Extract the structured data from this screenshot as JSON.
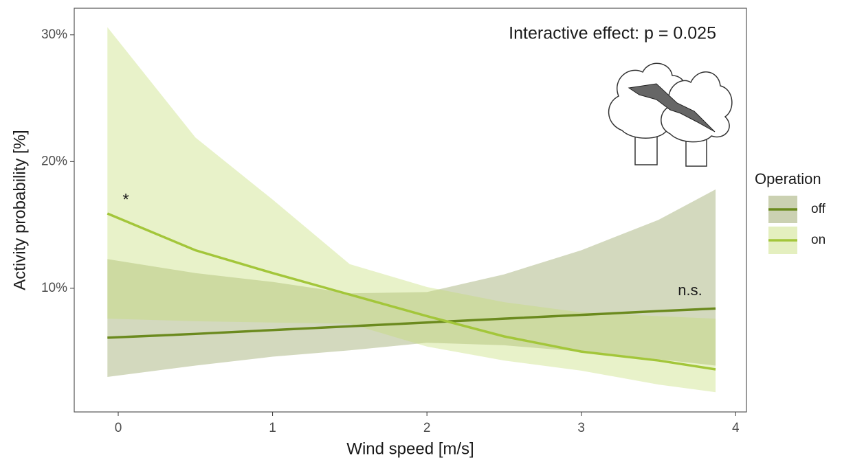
{
  "chart_data": {
    "type": "line",
    "annotation": "Interactive effect: p = 0.025",
    "significance_labels": [
      "*",
      "n.s."
    ],
    "x_label": "Wind speed [m/s]",
    "y_label": "Activity probability [%]",
    "legend_title": "Operation",
    "x": [
      -0.07,
      0.5,
      1,
      1.5,
      2,
      2.5,
      3,
      3.5,
      3.87
    ],
    "series": [
      {
        "name": "off",
        "color": "#6b8a1e",
        "band_color": "#8c9a55",
        "values": [
          6.1,
          6.4,
          6.7,
          7.0,
          7.3,
          7.6,
          7.9,
          8.2,
          8.4
        ],
        "upper": [
          12.3,
          11.2,
          10.5,
          9.6,
          9.7,
          11.1,
          13.0,
          15.4,
          17.8
        ],
        "lower": [
          3.0,
          3.9,
          4.6,
          5.1,
          5.7,
          5.5,
          5.0,
          4.4,
          3.9
        ]
      },
      {
        "name": "on",
        "color": "#a3c63a",
        "band_color": "#c3dc72",
        "values": [
          15.9,
          13.0,
          11.2,
          9.5,
          7.8,
          6.2,
          5.0,
          4.3,
          3.6
        ],
        "upper": [
          30.6,
          21.9,
          17.0,
          11.9,
          10.1,
          8.9,
          8.1,
          7.8,
          7.6
        ],
        "lower": [
          7.6,
          7.4,
          7.3,
          7.2,
          5.4,
          4.3,
          3.5,
          2.4,
          1.8
        ]
      }
    ],
    "xlim": [
      -0.285,
      4.07
    ],
    "xticks": [
      0,
      1,
      2,
      3,
      4
    ],
    "ylim": [
      0.24,
      32.1
    ],
    "yticks": [
      {
        "value": 10,
        "label": "10%"
      },
      {
        "value": 20,
        "label": "20%"
      },
      {
        "value": 30,
        "label": "30%"
      }
    ],
    "grid": false,
    "legend": "right"
  }
}
